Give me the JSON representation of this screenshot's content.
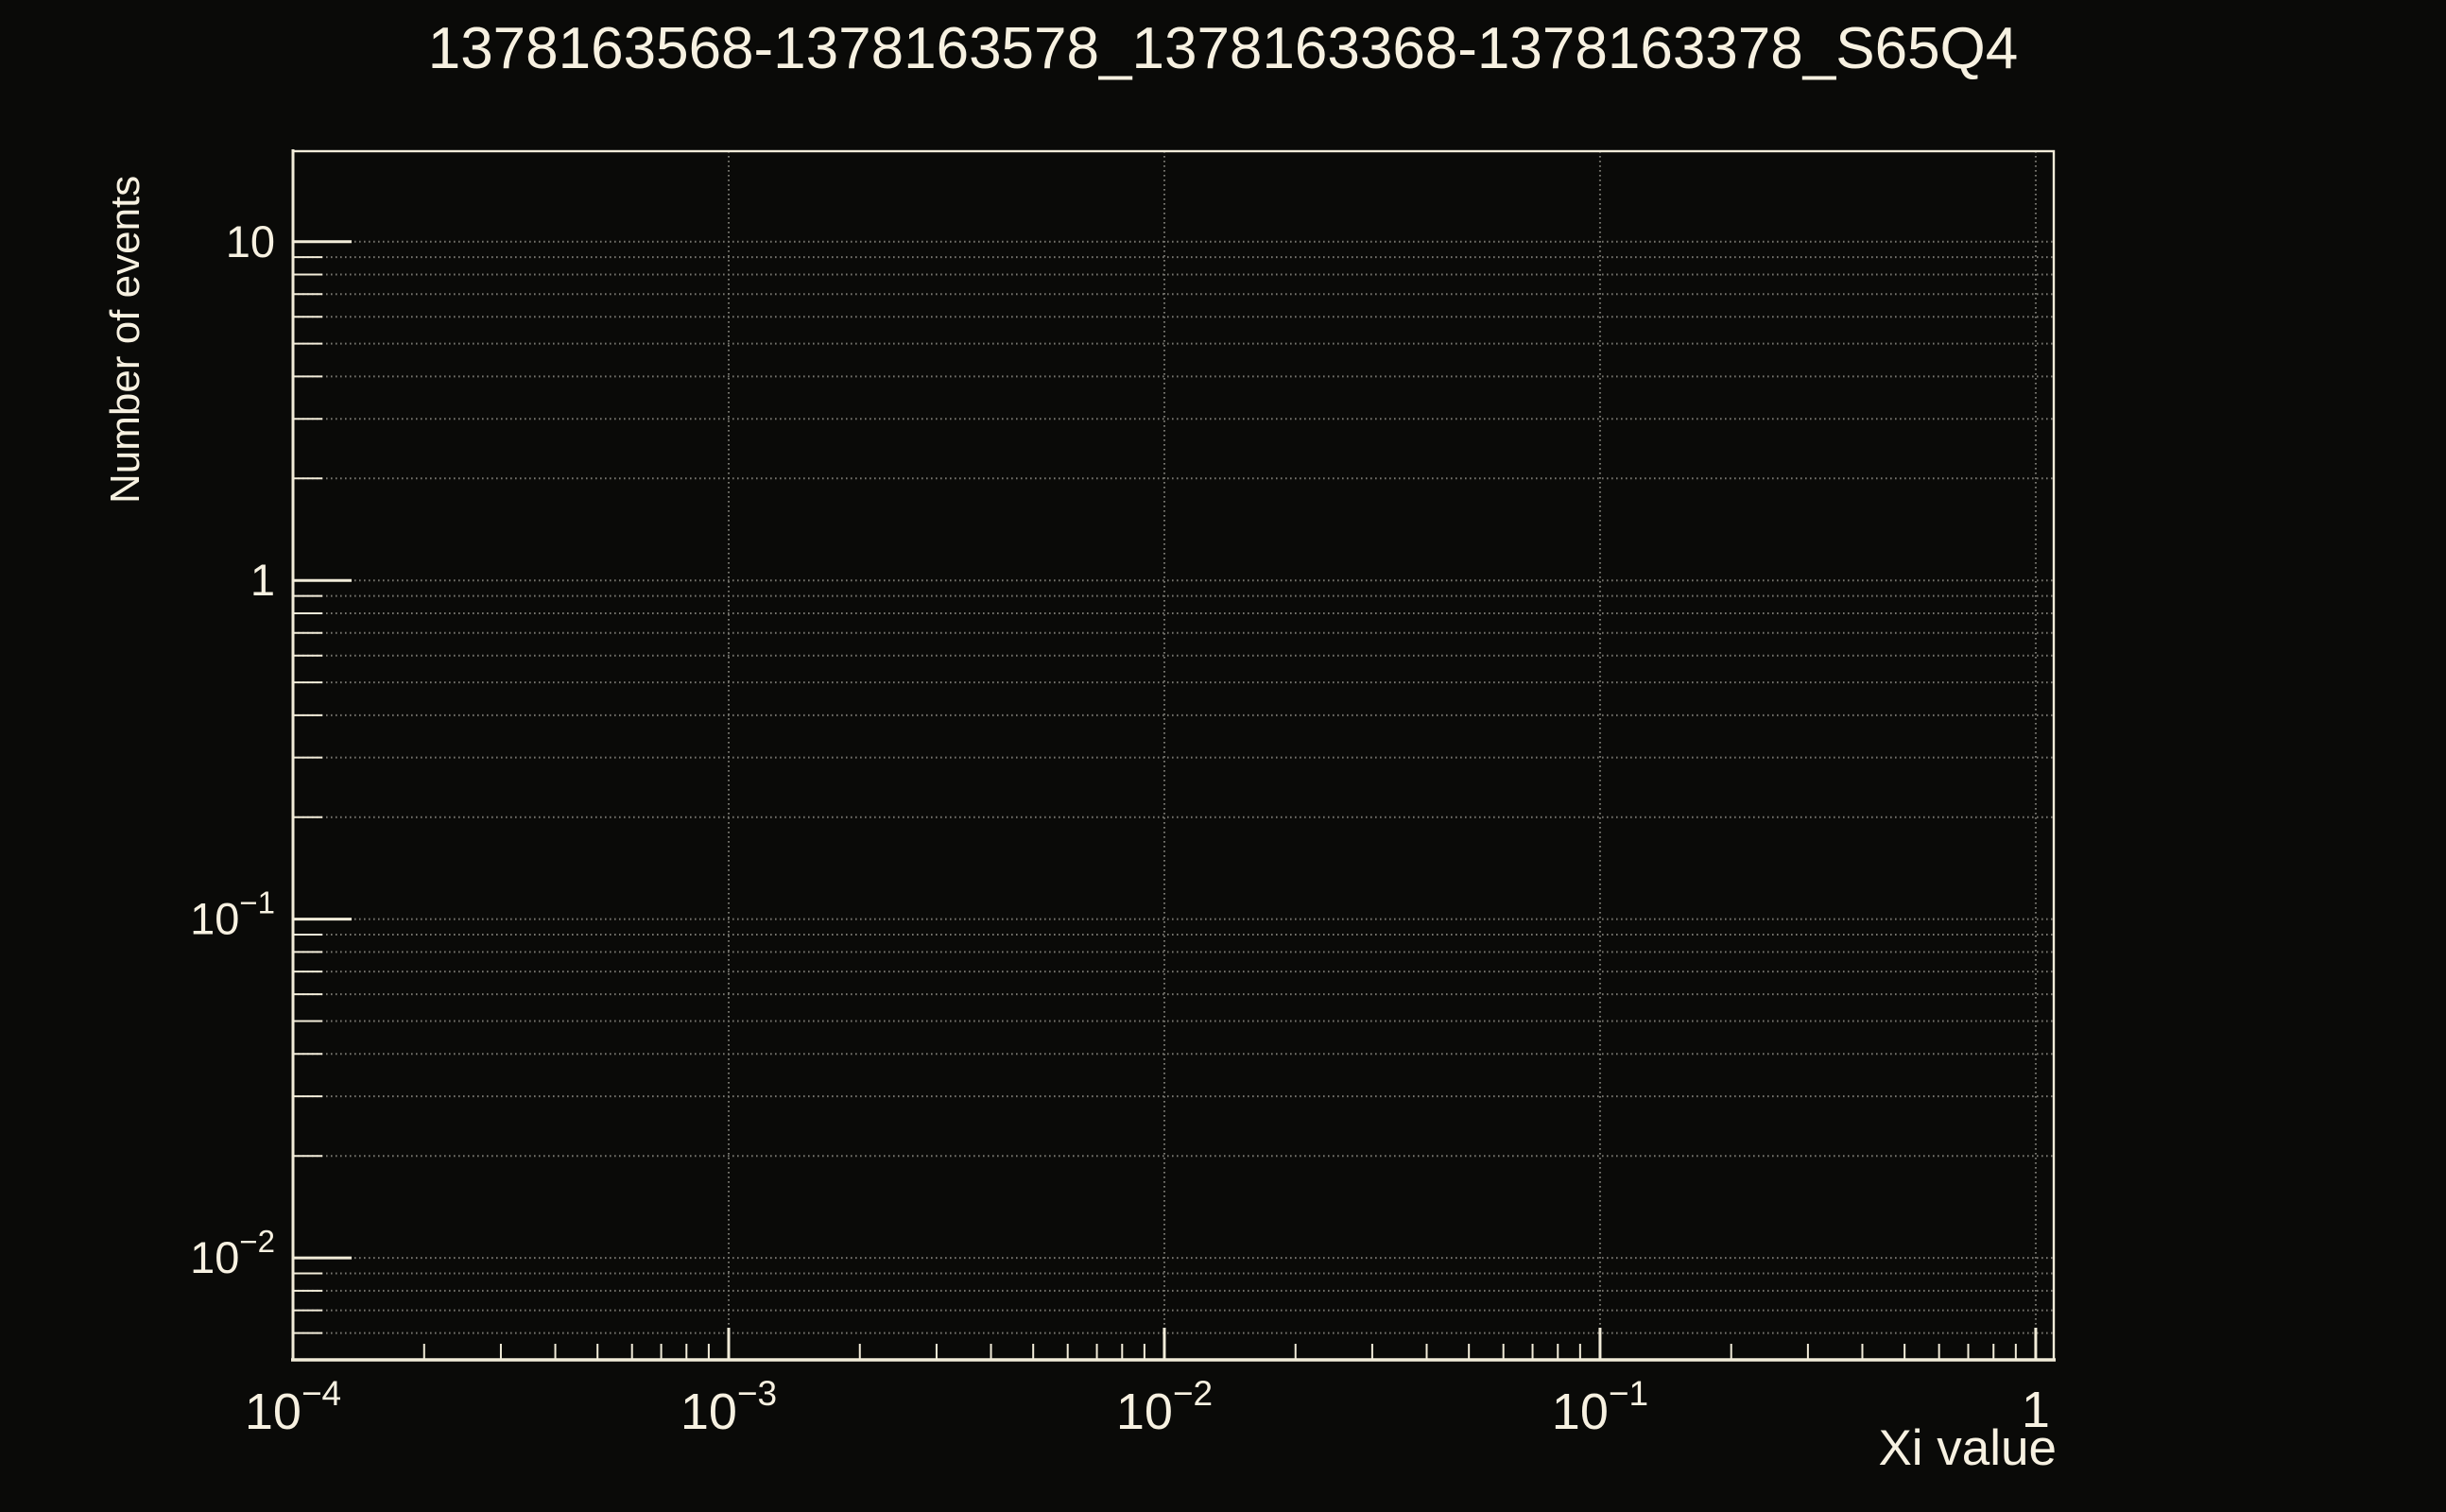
{
  "canvas": {
    "background_color": "#0a0a08",
    "foreground_color": "#f2ecd9",
    "text_color": "#f7f1e1",
    "grid_color": "#77766f"
  },
  "chart_data": {
    "type": "line",
    "title": "1378163568-1378163578_1378163368-1378163378_S65Q4",
    "xlabel": "Xi value",
    "ylabel": "Number of events",
    "x_scale": "log",
    "y_scale": "log",
    "xlim": [
      0.0001,
      1.1
    ],
    "ylim": [
      0.005,
      18.5
    ],
    "grid": true,
    "grid_style": "dotted",
    "legend": null,
    "series": [],
    "x_major_ticks": [
      {
        "value": 0.0001,
        "mantissa": "10",
        "exponent": "−4"
      },
      {
        "value": 0.001,
        "mantissa": "10",
        "exponent": "−3"
      },
      {
        "value": 0.01,
        "mantissa": "10",
        "exponent": "−2"
      },
      {
        "value": 0.1,
        "mantissa": "10",
        "exponent": "−1"
      },
      {
        "value": 1,
        "mantissa": "1",
        "exponent": ""
      }
    ],
    "y_major_ticks": [
      {
        "value": 10,
        "mantissa": "10",
        "exponent": ""
      },
      {
        "value": 1,
        "mantissa": "1",
        "exponent": ""
      },
      {
        "value": 0.1,
        "mantissa": "10",
        "exponent": "−1"
      },
      {
        "value": 0.01,
        "mantissa": "10",
        "exponent": "−2"
      }
    ]
  }
}
